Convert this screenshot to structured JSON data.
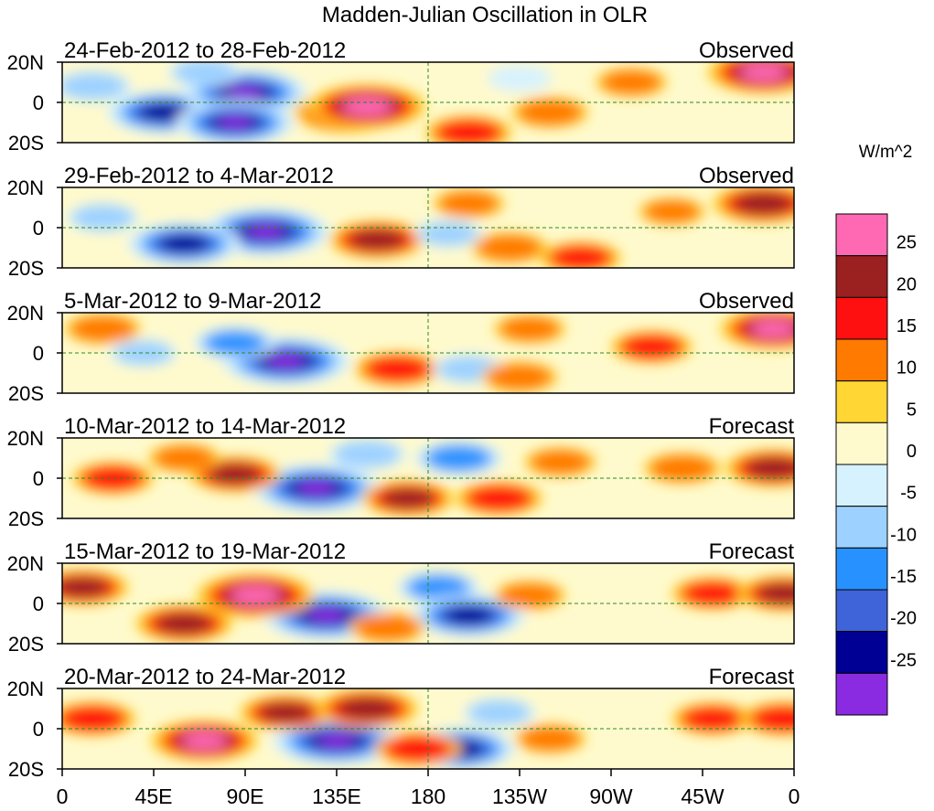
{
  "chart_data": {
    "type": "heatmap",
    "title": "Madden-Julian Oscillation in OLR",
    "units": "W/m^2",
    "x_ticks": [
      "0",
      "45E",
      "90E",
      "135E",
      "180",
      "135W",
      "90W",
      "45W",
      "0"
    ],
    "x_range_deg": [
      0,
      360
    ],
    "y_ticks": [
      "20N",
      "0",
      "20S"
    ],
    "y_range_deg": [
      -20,
      20
    ],
    "colorbar": {
      "labels": [
        "25",
        "20",
        "15",
        "10",
        "5",
        "0",
        "-5",
        "-10",
        "-15",
        "-20",
        "-25"
      ],
      "colors": [
        "#ff69b4",
        "#9b2020",
        "#ff1010",
        "#ff7a00",
        "#ffd633",
        "#fffacd",
        "#d7f2ff",
        "#9dd1ff",
        "#2792ff",
        "#3f63d8",
        "#000095",
        "#8a2be2"
      ]
    },
    "panels": [
      {
        "period": "24-Feb-2012 to 28-Feb-2012",
        "status": "Observed",
        "anomalies": [
          {
            "lon": 15,
            "lat": 8,
            "value": -10
          },
          {
            "lon": 50,
            "lat": -5,
            "value": -24
          },
          {
            "lon": 90,
            "lat": 5,
            "value": -28
          },
          {
            "lon": 85,
            "lat": -10,
            "value": -26
          },
          {
            "lon": 70,
            "lat": 15,
            "value": -8
          },
          {
            "lon": 140,
            "lat": -5,
            "value": 22
          },
          {
            "lon": 150,
            "lat": -2,
            "value": 26
          },
          {
            "lon": 200,
            "lat": -15,
            "value": 14
          },
          {
            "lon": 240,
            "lat": -5,
            "value": 10
          },
          {
            "lon": 280,
            "lat": 10,
            "value": 8
          },
          {
            "lon": 345,
            "lat": 15,
            "value": 24
          },
          {
            "lon": 225,
            "lat": 12,
            "value": -5
          }
        ]
      },
      {
        "period": "29-Feb-2012 to 4-Mar-2012",
        "status": "Observed",
        "anomalies": [
          {
            "lon": 100,
            "lat": -2,
            "value": -30
          },
          {
            "lon": 60,
            "lat": -8,
            "value": -24
          },
          {
            "lon": 20,
            "lat": 5,
            "value": -8
          },
          {
            "lon": 155,
            "lat": -6,
            "value": 18
          },
          {
            "lon": 200,
            "lat": 12,
            "value": 8
          },
          {
            "lon": 220,
            "lat": -10,
            "value": 10
          },
          {
            "lon": 255,
            "lat": -15,
            "value": 12
          },
          {
            "lon": 300,
            "lat": 8,
            "value": 6
          },
          {
            "lon": 345,
            "lat": 12,
            "value": 20
          },
          {
            "lon": 190,
            "lat": -3,
            "value": -6
          }
        ]
      },
      {
        "period": "5-Mar-2012 to 9-Mar-2012",
        "status": "Observed",
        "anomalies": [
          {
            "lon": 110,
            "lat": -4,
            "value": -30
          },
          {
            "lon": 85,
            "lat": 5,
            "value": -12
          },
          {
            "lon": 40,
            "lat": 0,
            "value": -6
          },
          {
            "lon": 20,
            "lat": 12,
            "value": 10
          },
          {
            "lon": 165,
            "lat": -8,
            "value": 14
          },
          {
            "lon": 200,
            "lat": -8,
            "value": -8
          },
          {
            "lon": 230,
            "lat": 12,
            "value": 8
          },
          {
            "lon": 225,
            "lat": -12,
            "value": 10
          },
          {
            "lon": 290,
            "lat": 3,
            "value": 12
          },
          {
            "lon": 350,
            "lat": 12,
            "value": 22
          }
        ]
      },
      {
        "period": "10-Mar-2012 to 14-Mar-2012",
        "status": "Forecast",
        "anomalies": [
          {
            "lon": 125,
            "lat": -5,
            "value": -30
          },
          {
            "lon": 85,
            "lat": 2,
            "value": 16
          },
          {
            "lon": 60,
            "lat": 10,
            "value": 8
          },
          {
            "lon": 25,
            "lat": 0,
            "value": 12
          },
          {
            "lon": 150,
            "lat": 12,
            "value": -10
          },
          {
            "lon": 195,
            "lat": 10,
            "value": -14
          },
          {
            "lon": 215,
            "lat": -10,
            "value": 14
          },
          {
            "lon": 170,
            "lat": -10,
            "value": 16
          },
          {
            "lon": 245,
            "lat": 8,
            "value": 8
          },
          {
            "lon": 305,
            "lat": 5,
            "value": 10
          },
          {
            "lon": 350,
            "lat": 5,
            "value": 18
          }
        ]
      },
      {
        "period": "15-Mar-2012 to 19-Mar-2012",
        "status": "Forecast",
        "anomalies": [
          {
            "lon": 130,
            "lat": -6,
            "value": -30
          },
          {
            "lon": 95,
            "lat": 4,
            "value": 26
          },
          {
            "lon": 60,
            "lat": -10,
            "value": 18
          },
          {
            "lon": 10,
            "lat": 8,
            "value": 16
          },
          {
            "lon": 185,
            "lat": 8,
            "value": -12
          },
          {
            "lon": 200,
            "lat": -6,
            "value": -24
          },
          {
            "lon": 160,
            "lat": -12,
            "value": 10
          },
          {
            "lon": 230,
            "lat": 4,
            "value": 8
          },
          {
            "lon": 320,
            "lat": 5,
            "value": 12
          },
          {
            "lon": 355,
            "lat": 5,
            "value": 16
          }
        ]
      },
      {
        "period": "20-Mar-2012 to 24-Mar-2012",
        "status": "Forecast",
        "anomalies": [
          {
            "lon": 135,
            "lat": -6,
            "value": -30
          },
          {
            "lon": 70,
            "lat": -6,
            "value": 22
          },
          {
            "lon": 110,
            "lat": 8,
            "value": 16
          },
          {
            "lon": 150,
            "lat": 10,
            "value": 20
          },
          {
            "lon": 15,
            "lat": 5,
            "value": 14
          },
          {
            "lon": 195,
            "lat": -10,
            "value": -24
          },
          {
            "lon": 215,
            "lat": 8,
            "value": -8
          },
          {
            "lon": 175,
            "lat": -10,
            "value": 14
          },
          {
            "lon": 240,
            "lat": -5,
            "value": 8
          },
          {
            "lon": 320,
            "lat": 5,
            "value": 12
          },
          {
            "lon": 355,
            "lat": 5,
            "value": 14
          }
        ]
      }
    ]
  }
}
